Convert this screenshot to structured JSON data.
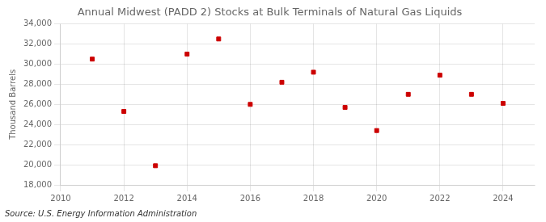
{
  "chart_data": {
    "type": "scatter",
    "title": "Annual Midwest (PADD 2) Stocks at Bulk Terminals of Natural Gas Liquids",
    "ylabel": "Thousand Barrels",
    "source": "Source: U.S. Energy Information Administration",
    "x": [
      2011,
      2012,
      2013,
      2014,
      2015,
      2016,
      2017,
      2018,
      2019,
      2020,
      2021,
      2022,
      2023,
      2024
    ],
    "values": [
      30500,
      25300,
      19900,
      31000,
      32500,
      26000,
      28200,
      29200,
      25700,
      23400,
      27000,
      28900,
      27000,
      26100
    ],
    "color": "#cc0000",
    "marker": "square",
    "xlim": [
      2010,
      2025
    ],
    "xticks": [
      2010,
      2012,
      2014,
      2016,
      2018,
      2020,
      2022,
      2024
    ],
    "ylim": [
      18000,
      34000
    ],
    "yticks": [
      {
        "value": 18000,
        "label": "18,000"
      },
      {
        "value": 20000,
        "label": "20,000"
      },
      {
        "value": 22000,
        "label": "22,000"
      },
      {
        "value": 24000,
        "label": "24,000"
      },
      {
        "value": 26000,
        "label": "26,000"
      },
      {
        "value": 28000,
        "label": "28,000"
      },
      {
        "value": 30000,
        "label": "30,000"
      },
      {
        "value": 32000,
        "label": "32,000"
      },
      {
        "value": 34000,
        "label": "34,000"
      }
    ],
    "grid": true
  }
}
